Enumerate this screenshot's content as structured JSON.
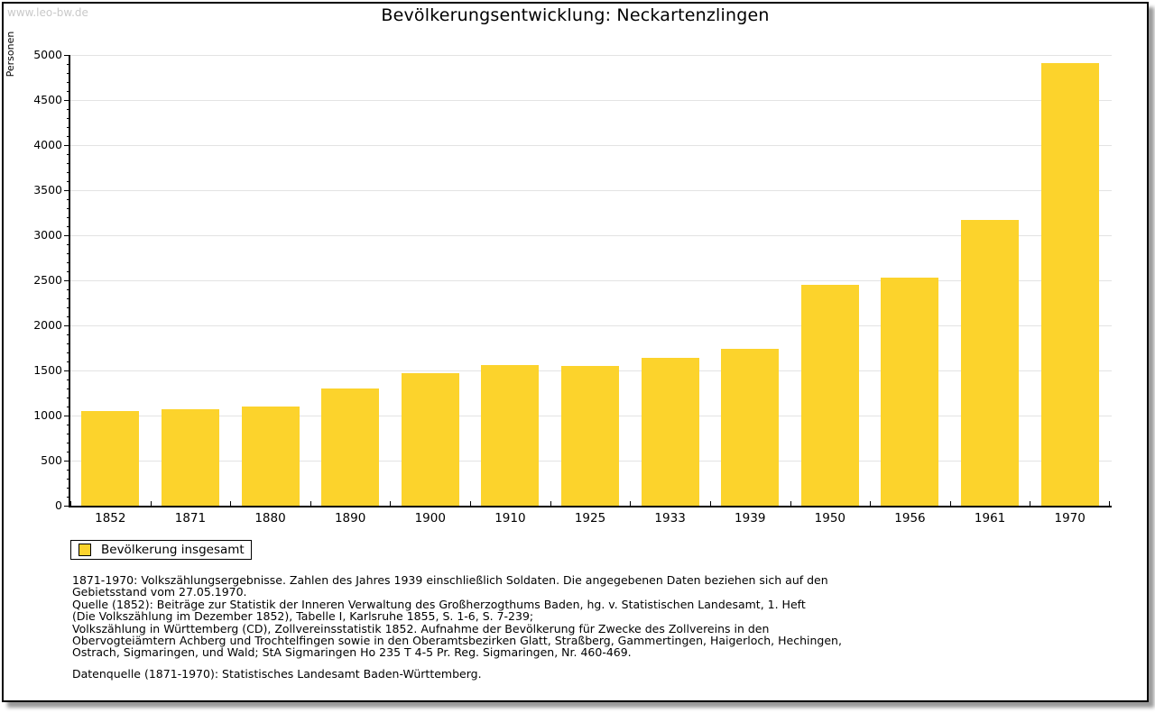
{
  "watermark": "www.leo-bw.de",
  "header": {
    "title": "Bevölkerungsentwicklung: Neckartenzlingen"
  },
  "chart_data": {
    "type": "bar",
    "title": "Bevölkerungsentwicklung: Neckartenzlingen",
    "xlabel": "",
    "ylabel": "Personen",
    "ylim": [
      0,
      5000
    ],
    "ytick_major": 500,
    "ytick_minor": 100,
    "yticks": [
      0,
      500,
      1000,
      1500,
      2000,
      2500,
      3000,
      3500,
      4000,
      4500,
      5000
    ],
    "grid": true,
    "legend_position": "bottom-left",
    "bar_color": "#fcd32c",
    "categories": [
      "1852",
      "1871",
      "1880",
      "1890",
      "1900",
      "1910",
      "1925",
      "1933",
      "1939",
      "1950",
      "1956",
      "1961",
      "1970"
    ],
    "series": [
      {
        "name": "Bevölkerung insgesamt",
        "values": [
          1050,
          1075,
          1100,
          1300,
          1475,
          1560,
          1550,
          1645,
          1745,
          2450,
          2535,
          3170,
          4915
        ]
      }
    ]
  },
  "legend": {
    "swatch_color": "#fcd32c",
    "label": "Bevölkerung insgesamt"
  },
  "footer": {
    "lines": [
      "1871-1970: Volkszählungsergebnisse. Zahlen des Jahres 1939 einschließlich Soldaten. Die angegebenen Daten beziehen sich auf den",
      "Gebietsstand vom 27.05.1970.",
      "Quelle (1852): Beiträge zur Statistik der Inneren Verwaltung des Großherzogthums Baden, hg. v. Statistischen Landesamt, 1. Heft",
      "(Die Volkszählung im Dezember 1852), Tabelle I, Karlsruhe 1855, S. 1-6, S. 7-239;",
      "Volkszählung in Württemberg (CD), Zollvereinsstatistik 1852. Aufnahme der Bevölkerung für Zwecke des Zollvereins in den",
      "Obervogteiämtern Achberg und Trochtelfingen sowie in den Oberamtsbezirken Glatt, Straßberg, Gammertingen, Haigerloch, Hechingen,",
      "Ostrach, Sigmaringen, und Wald; StA Sigmaringen Ho 235 T 4-5 Pr. Reg. Sigmaringen, Nr. 460-469."
    ],
    "datasource": "Datenquelle (1871-1970): Statistisches Landesamt Baden-Württemberg."
  },
  "colors": {
    "bar": "#fcd32c",
    "grid": "#e3e3e3",
    "axis": "#000000",
    "watermark": "#c9c9c9",
    "frame_border": "#000000",
    "shadow": "#9a9a9a"
  }
}
